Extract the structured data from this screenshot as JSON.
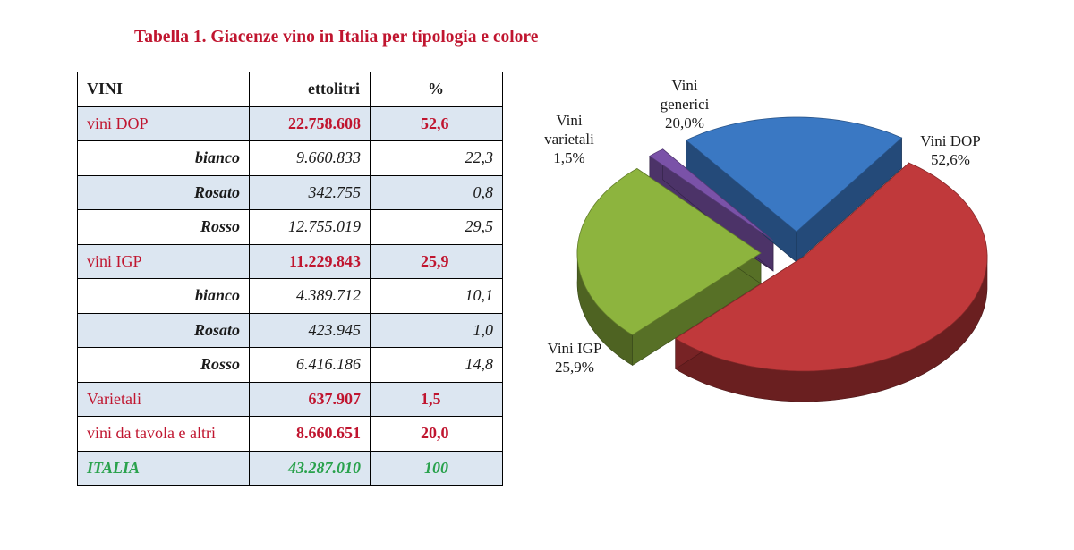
{
  "title": "Tabella 1. Giacenze vino in Italia per tipologia e colore",
  "table": {
    "headers": [
      "VINI",
      "ettolitri",
      "%"
    ],
    "rows": [
      {
        "label": "vini DOP",
        "ettolitri": "22.758.608",
        "pct": "52,6",
        "kind": "cat"
      },
      {
        "label": "bianco",
        "ettolitri": "9.660.833",
        "pct": "22,3",
        "kind": "sub"
      },
      {
        "label": "Rosato",
        "ettolitri": "342.755",
        "pct": "0,8",
        "kind": "sub"
      },
      {
        "label": "Rosso",
        "ettolitri": "12.755.019",
        "pct": "29,5",
        "kind": "sub"
      },
      {
        "label": "vini IGP",
        "ettolitri": "11.229.843",
        "pct": "25,9",
        "kind": "cat"
      },
      {
        "label": "bianco",
        "ettolitri": "4.389.712",
        "pct": "10,1",
        "kind": "sub"
      },
      {
        "label": "Rosato",
        "ettolitri": "423.945",
        "pct": "1,0",
        "kind": "sub"
      },
      {
        "label": "Rosso",
        "ettolitri": "6.416.186",
        "pct": "14,8",
        "kind": "sub"
      },
      {
        "label": "Varietali",
        "ettolitri": "637.907",
        "pct": "1,5",
        "kind": "cat"
      },
      {
        "label": "vini da tavola e altri",
        "ettolitri": "8.660.651",
        "pct": "20,0",
        "kind": "cat"
      },
      {
        "label": "ITALIA",
        "ettolitri": "43.287.010",
        "pct": "100",
        "kind": "total"
      }
    ]
  },
  "chart_data": {
    "type": "pie",
    "legend": "none",
    "slices": [
      {
        "label_lines": [
          "Vini DOP",
          "52,6%"
        ],
        "value": 52.6,
        "color": "#c0393b"
      },
      {
        "label_lines": [
          "Vini IGP",
          "25,9%"
        ],
        "value": 25.9,
        "color": "#8db43e"
      },
      {
        "label_lines": [
          "Vini",
          "varietali",
          "1,5%"
        ],
        "value": 1.5,
        "color": "#7a52a8"
      },
      {
        "label_lines": [
          "Vini",
          "generici",
          "20,0%"
        ],
        "value": 20.0,
        "color": "#3a78c3"
      }
    ]
  }
}
